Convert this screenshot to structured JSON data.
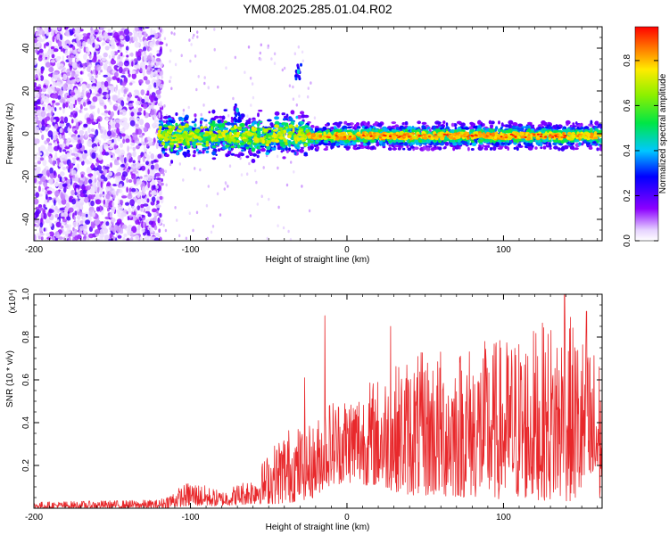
{
  "title": "YM08.2025.285.01.04.R02",
  "chart_data": [
    {
      "type": "heatmap",
      "name": "spectrogram",
      "xlabel": "Height of straight line (km)",
      "ylabel": "Frequency (Hz)",
      "xlim": [
        -200,
        163
      ],
      "ylim": [
        -50,
        50
      ],
      "xticks": [
        -200,
        -100,
        0,
        100
      ],
      "yticks": [
        -40,
        -20,
        0,
        20,
        40
      ],
      "colorbar": {
        "label": "Normalized spectral amplitude",
        "range": [
          0.0,
          0.95
        ],
        "ticks": [
          0.0,
          0.2,
          0.4,
          0.6,
          0.8
        ]
      },
      "features": [
        {
          "description": "diffuse noise",
          "x_range": [
            -200,
            -118
          ],
          "y_range": [
            -50,
            50
          ]
        },
        {
          "description": "signal band",
          "x_range": [
            -120,
            163
          ],
          "y_center": -1,
          "y_halfwidth": 5
        },
        {
          "description": "isolated patch",
          "x": -31,
          "y": 29
        },
        {
          "description": "isolated patch",
          "x": -70,
          "y": 11
        }
      ]
    },
    {
      "type": "line",
      "name": "snr",
      "xlabel": "Height of straight line (km)",
      "ylabel": "SNR (10 * v/v)",
      "yscale_label": "(x10⁴)",
      "xlim": [
        -200,
        163
      ],
      "ylim": [
        0.0,
        1.0
      ],
      "xticks": [
        -200,
        -100,
        0,
        100
      ],
      "yticks": [
        0.2,
        0.4,
        0.6,
        0.8,
        1.0
      ],
      "color": "#e8282b",
      "envelope": [
        {
          "x": -200,
          "low": 0.0,
          "high": 0.03
        },
        {
          "x": -120,
          "low": 0.0,
          "high": 0.04
        },
        {
          "x": -100,
          "low": 0.01,
          "high": 0.13
        },
        {
          "x": -80,
          "low": 0.01,
          "high": 0.08
        },
        {
          "x": -60,
          "low": 0.02,
          "high": 0.15
        },
        {
          "x": -40,
          "low": 0.02,
          "high": 0.38
        },
        {
          "x": -20,
          "low": 0.05,
          "high": 0.4
        },
        {
          "x": -14,
          "low": 0.1,
          "high": 0.51
        },
        {
          "x": 0,
          "low": 0.12,
          "high": 0.55
        },
        {
          "x": 20,
          "low": 0.1,
          "high": 0.62
        },
        {
          "x": 40,
          "low": 0.06,
          "high": 0.72
        },
        {
          "x": 60,
          "low": 0.05,
          "high": 0.75
        },
        {
          "x": 80,
          "low": 0.05,
          "high": 0.78
        },
        {
          "x": 100,
          "low": 0.04,
          "high": 0.8
        },
        {
          "x": 120,
          "low": 0.04,
          "high": 0.85
        },
        {
          "x": 140,
          "low": 0.03,
          "high": 0.92
        },
        {
          "x": 163,
          "low": 0.03,
          "high": 0.72
        }
      ],
      "peaks": [
        {
          "x": -14,
          "y": 0.9
        },
        {
          "x": -27,
          "y": 0.61
        },
        {
          "x": 28,
          "y": 0.85
        },
        {
          "x": 139,
          "y": 1.0
        },
        {
          "x": 153,
          "y": 0.92
        }
      ]
    }
  ]
}
